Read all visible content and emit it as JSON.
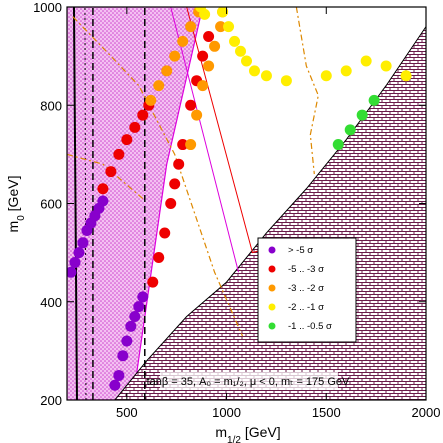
{
  "chart_data": {
    "type": "scatter",
    "xlim": [
      200,
      2000
    ],
    "ylim": [
      200,
      1000
    ],
    "xticks": [
      500,
      1000,
      1500,
      2000
    ],
    "yticks": [
      200,
      400,
      600,
      800,
      1000
    ],
    "xlabel": {
      "main": "m",
      "sub": "1/2",
      "unit": " [GeV]"
    },
    "ylabel": {
      "main": "m",
      "sub": "0",
      "unit": " [GeV]"
    },
    "annotation": "tanβ = 35, A₀ = m₁/₂, μ < 0, mₜ = 175 GeV",
    "legend": {
      "placement": "right-middle",
      "entries": [
        {
          "label": "> -5 σ",
          "color": "#8800cc"
        },
        {
          "label": "-5 .. -3 σ",
          "color": "#ee0000"
        },
        {
          "label": "-3 .. -2 σ",
          "color": "#ff9900"
        },
        {
          "label": "-2 .. -1 σ",
          "color": "#ffee00"
        },
        {
          "label": "-1 .. -0.5 σ",
          "color": "#33dd33"
        }
      ]
    },
    "regions": {
      "charged_lsp_boundary": [
        [
          440,
          200
        ],
        [
          600,
          280
        ],
        [
          800,
          370
        ],
        [
          1000,
          440
        ],
        [
          1200,
          540
        ],
        [
          1400,
          630
        ],
        [
          1600,
          730
        ],
        [
          1800,
          840
        ],
        [
          2000,
          960
        ]
      ],
      "magenta_band": [
        [
          200,
          200
        ],
        [
          200,
          1000
        ],
        [
          880,
          1000
        ],
        [
          700,
          680
        ],
        [
          530,
          200
        ]
      ]
    },
    "series": [
      {
        "name": "> -5 σ",
        "color": "#8800cc",
        "points": [
          [
            220,
            460
          ],
          [
            240,
            480
          ],
          [
            260,
            500
          ],
          [
            280,
            520
          ],
          [
            300,
            545
          ],
          [
            320,
            560
          ],
          [
            340,
            575
          ],
          [
            360,
            590
          ],
          [
            380,
            605
          ],
          [
            440,
            230
          ],
          [
            460,
            250
          ],
          [
            480,
            290
          ],
          [
            500,
            320
          ],
          [
            520,
            350
          ],
          [
            540,
            370
          ],
          [
            560,
            390
          ],
          [
            580,
            410
          ]
        ]
      },
      {
        "name": "-5 .. -3 σ",
        "color": "#ee0000",
        "points": [
          [
            380,
            630
          ],
          [
            420,
            665
          ],
          [
            460,
            700
          ],
          [
            500,
            730
          ],
          [
            540,
            755
          ],
          [
            580,
            780
          ],
          [
            610,
            800
          ],
          [
            630,
            440
          ],
          [
            660,
            490
          ],
          [
            690,
            540
          ],
          [
            720,
            600
          ],
          [
            740,
            640
          ],
          [
            760,
            680
          ],
          [
            780,
            720
          ],
          [
            820,
            800
          ],
          [
            850,
            850
          ],
          [
            880,
            900
          ],
          [
            910,
            940
          ]
        ]
      },
      {
        "name": "-3 .. -2 σ",
        "color": "#ff9900",
        "points": [
          [
            620,
            810
          ],
          [
            660,
            840
          ],
          [
            700,
            870
          ],
          [
            740,
            900
          ],
          [
            780,
            930
          ],
          [
            820,
            960
          ],
          [
            860,
            990
          ],
          [
            820,
            720
          ],
          [
            850,
            780
          ],
          [
            880,
            840
          ],
          [
            910,
            880
          ],
          [
            940,
            920
          ],
          [
            970,
            960
          ],
          [
            980,
            990
          ]
        ]
      },
      {
        "name": "-2 .. -1 σ",
        "color": "#ffee00",
        "points": [
          [
            870,
            1000
          ],
          [
            890,
            985
          ],
          [
            980,
            990
          ],
          [
            1010,
            960
          ],
          [
            1040,
            930
          ],
          [
            1070,
            910
          ],
          [
            1100,
            890
          ],
          [
            1140,
            870
          ],
          [
            1200,
            860
          ],
          [
            1300,
            850
          ],
          [
            1500,
            860
          ],
          [
            1600,
            870
          ],
          [
            1700,
            890
          ],
          [
            1800,
            880
          ],
          [
            1900,
            860
          ]
        ]
      },
      {
        "name": "-1 .. -0.5 σ",
        "color": "#33dd33",
        "points": [
          [
            1560,
            720
          ],
          [
            1620,
            750
          ],
          [
            1680,
            780
          ],
          [
            1740,
            810
          ]
        ]
      }
    ]
  }
}
